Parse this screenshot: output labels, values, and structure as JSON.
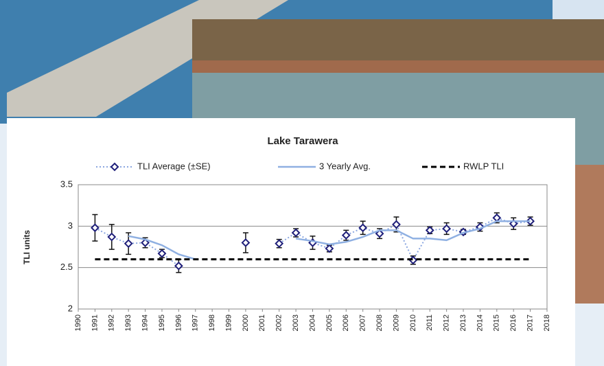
{
  "chart_data": {
    "type": "line",
    "title": "Lake Tarawera",
    "y_label": "TLI units",
    "x": [
      1991,
      1992,
      1993,
      1994,
      1995,
      1996,
      1997,
      1998,
      1999,
      2000,
      2001,
      2002,
      2003,
      2004,
      2005,
      2006,
      2007,
      2008,
      2009,
      2010,
      2011,
      2012,
      2013,
      2014,
      2015,
      2016,
      2017
    ],
    "series": [
      {
        "name": "TLI Average (±SE)",
        "color": "#1f1f7a",
        "line_color": "#8aa6e0",
        "dash": "dotted",
        "marker": "diamond",
        "values": [
          2.98,
          2.87,
          2.79,
          2.8,
          2.67,
          2.52,
          null,
          null,
          null,
          2.8,
          null,
          2.79,
          2.92,
          2.8,
          2.73,
          2.89,
          2.98,
          2.91,
          3.02,
          2.59,
          2.95,
          2.97,
          2.93,
          2.99,
          3.1,
          3.03,
          3.06
        ],
        "errors": [
          0.16,
          0.15,
          0.13,
          0.06,
          0.05,
          0.08,
          null,
          null,
          null,
          0.12,
          null,
          0.05,
          0.05,
          0.08,
          0.04,
          0.06,
          0.08,
          0.06,
          0.09,
          0.05,
          0.04,
          0.07,
          0.03,
          0.05,
          0.06,
          0.07,
          0.05
        ]
      },
      {
        "name": "3 Yearly Avg.",
        "color": "#8fb0e2",
        "dash": "solid",
        "values": [
          null,
          null,
          2.88,
          2.84,
          2.77,
          2.66,
          2.6,
          null,
          null,
          null,
          null,
          null,
          2.85,
          2.82,
          2.78,
          2.81,
          2.87,
          2.95,
          2.95,
          2.85,
          2.85,
          2.83,
          2.92,
          2.97,
          3.06,
          3.06,
          3.06
        ]
      },
      {
        "name": "RWLP TLI",
        "color": "#000000",
        "dash": "dashed",
        "values": [
          2.6,
          2.6,
          2.6,
          2.6,
          2.6,
          2.6,
          2.6,
          2.6,
          2.6,
          2.6,
          2.6,
          2.6,
          2.6,
          2.6,
          2.6,
          2.6,
          2.6,
          2.6,
          2.6,
          2.6,
          2.6,
          2.6,
          2.6,
          2.6,
          2.6,
          2.6,
          2.6
        ]
      }
    ],
    "xlim": [
      1990,
      2018
    ],
    "xticks": [
      1990,
      1991,
      1992,
      1993,
      1994,
      1995,
      1996,
      1997,
      1998,
      1999,
      2000,
      2001,
      2002,
      2003,
      2004,
      2005,
      2006,
      2007,
      2008,
      2009,
      2010,
      2011,
      2012,
      2013,
      2014,
      2015,
      2016,
      2017,
      2018
    ],
    "ylim": [
      2,
      3.5
    ],
    "yticks": [
      2,
      2.5,
      3,
      3.5
    ],
    "grid": true,
    "legend": "top"
  }
}
